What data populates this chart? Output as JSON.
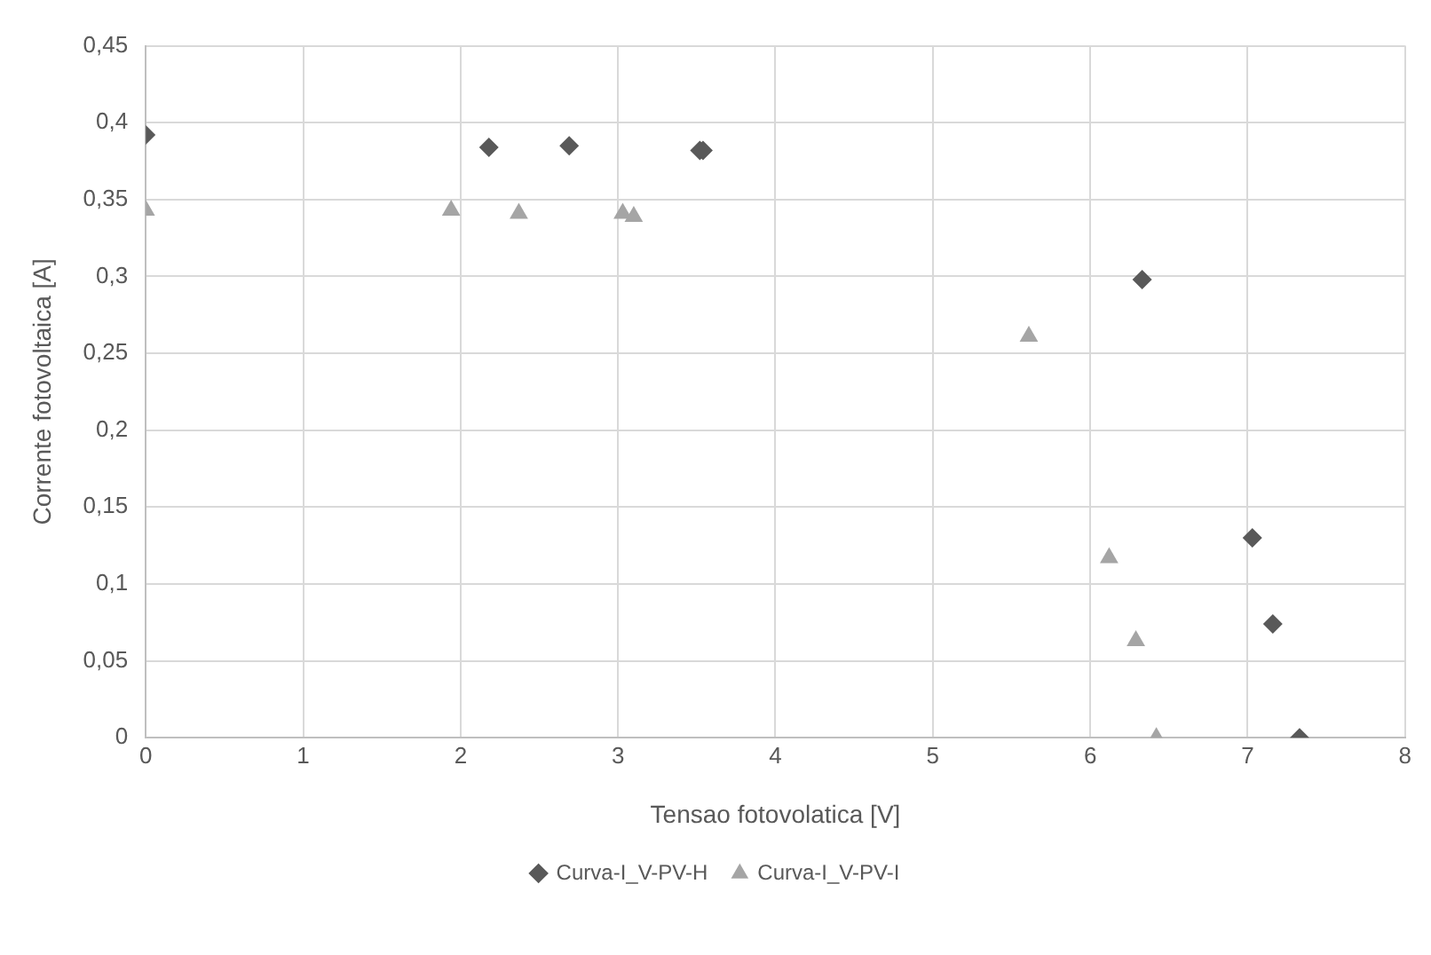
{
  "chart_data": {
    "type": "scatter",
    "xlabel": "Tensao fotovolatica [V]",
    "ylabel": "Corrente fotovoltaica [A]",
    "series": [
      {
        "name": "Curva-I_V-PV-H",
        "color": "#595959",
        "marker": "diamond",
        "x": [
          0,
          2.18,
          2.69,
          3.52,
          3.54,
          6.33,
          7.03,
          7.16,
          7.33
        ],
        "values": [
          0.392,
          0.384,
          0.385,
          0.382,
          0.382,
          0.298,
          0.13,
          0.074,
          0
        ]
      },
      {
        "name": "Curva-I_V-PV-I",
        "color": "#a5a5a5",
        "marker": "triangle",
        "x": [
          0,
          1.94,
          2.37,
          3.03,
          3.1,
          5.61,
          6.12,
          6.29,
          6.42
        ],
        "values": [
          0.343,
          0.343,
          0.341,
          0.341,
          0.339,
          0.261,
          0.117,
          0.063,
          0
        ]
      }
    ],
    "xlim": [
      0,
      8
    ],
    "xticks": [
      0,
      1,
      2,
      3,
      4,
      5,
      6,
      7,
      8
    ],
    "ylim": [
      0,
      0.45
    ],
    "yticks": [
      0,
      {
        "value": 0.05,
        "label": "0,05"
      },
      {
        "value": 0.1,
        "label": "0,1"
      },
      {
        "value": 0.15,
        "label": "0,15"
      },
      {
        "value": 0.2,
        "label": "0,2"
      },
      {
        "value": 0.25,
        "label": "0,25"
      },
      {
        "value": 0.3,
        "label": "0,3"
      },
      {
        "value": 0.35,
        "label": "0,35"
      },
      {
        "value": 0.4,
        "label": "0,4"
      },
      {
        "value": 0.45,
        "label": "0,45"
      }
    ],
    "grid": true,
    "legend": "bottom"
  }
}
